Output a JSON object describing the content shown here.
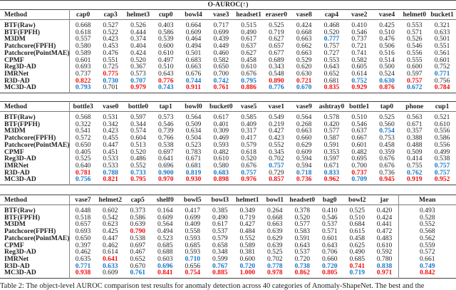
{
  "title": "O-AUROC(↑)",
  "method_header": "Method",
  "methods": [
    "BTF(Raw)",
    "BTF(FPFH)",
    "M3DM",
    "Patchcore(FPFH)",
    "Patchcore(PointMAE)",
    "CPMF",
    "Reg3D-AD",
    "IMRNet",
    "R3D-AD",
    "MC3D-AD"
  ],
  "colors": {
    "best": "#f01010",
    "second": "#1a78c8"
  },
  "blocks": [
    {
      "columns": [
        "cap0",
        "cap3",
        "helmet3",
        "cup0",
        "bowl4",
        "vase3",
        "headset1",
        "eraser0",
        "vase8",
        "cap4",
        "vase2",
        "vase4",
        "helmet0",
        "bucket1"
      ],
      "rows": [
        {
          "values": [
            "0.668",
            "0.527",
            "0.526",
            "0.403",
            "0.664",
            "0.717",
            "0.515",
            "0.525",
            "0.424",
            "0.468",
            "0.410",
            "0.425",
            "0.553",
            "0.321"
          ],
          "best": [],
          "second": []
        },
        {
          "values": [
            "0.618",
            "0.522",
            "0.444",
            "0.586",
            "0.609",
            "0.699",
            "0.490",
            "0.719",
            "0.668",
            "0.520",
            "0.546",
            "0.510",
            "0.571",
            "0.633"
          ],
          "best": [],
          "second": []
        },
        {
          "values": [
            "0.557",
            "0.423",
            "0.374",
            "0.539",
            "0.464",
            "0.439",
            "0.617",
            "0.627",
            "0.663",
            "0.777",
            "0.737",
            "0.476",
            "0.526",
            "0.501"
          ],
          "best": [],
          "second": [
            9
          ]
        },
        {
          "values": [
            "0.580",
            "0.453",
            "0.404",
            "0.600",
            "0.494",
            "0.449",
            "0.637",
            "0.657",
            "0.662",
            "0.757",
            "0.721",
            "0.506",
            "0.546",
            "0.551"
          ],
          "best": [],
          "second": []
        },
        {
          "values": [
            "0.589",
            "0.476",
            "0.424",
            "0.610",
            "0.501",
            "0.460",
            "0.627",
            "0.677",
            "0.663",
            "0.727",
            "0.741",
            "0.516",
            "0.556",
            "0.561"
          ],
          "best": [],
          "second": []
        },
        {
          "values": [
            "0.601",
            "0.551",
            "0.520",
            "0.497",
            "0.683",
            "0.582",
            "0.458",
            "0.689",
            "0.529",
            "0.553",
            "0.582",
            "0.514",
            "0.555",
            "0.601"
          ],
          "best": [],
          "second": []
        },
        {
          "values": [
            "0.693",
            "0.725",
            "0.367",
            "0.510",
            "0.663",
            "0.650",
            "0.610",
            "0.343",
            "0.620",
            "0.643",
            "0.605",
            "0.500",
            "0.600",
            "0.752"
          ],
          "best": [],
          "second": []
        },
        {
          "values": [
            "0.737",
            "0.775",
            "0.573",
            "0.643",
            "0.676",
            "0.700",
            "0.676",
            "0.548",
            "0.630",
            "0.652",
            "0.614",
            "0.524",
            "0.597",
            "0.771"
          ],
          "best": [
            1
          ],
          "second": [
            13
          ]
        },
        {
          "values": [
            "0.822",
            "0.730",
            "0.707",
            "0.776",
            "0.744",
            "0.742",
            "0.795",
            "0.890",
            "0.721",
            "0.681",
            "0.752",
            "0.630",
            "0.757",
            "0.756"
          ],
          "best": [
            0,
            3,
            7,
            8,
            12
          ],
          "second": [
            1,
            2,
            4,
            5,
            6,
            10,
            11
          ]
        },
        {
          "values": [
            "0.793",
            "0.701",
            "0.979",
            "0.743",
            "0.911",
            "0.761",
            "0.886",
            "0.776",
            "0.670",
            "0.835",
            "0.929",
            "0.876",
            "0.672",
            "0.784"
          ],
          "best": [
            2,
            4,
            5,
            6,
            9,
            10,
            11,
            13
          ],
          "second": [
            0,
            3,
            7,
            8,
            12
          ]
        }
      ]
    },
    {
      "columns": [
        "bottle3",
        "vase0",
        "bottle0",
        "tap1",
        "bowl0",
        "bucket0",
        "vase5",
        "vase1",
        "vase9",
        "ashtray0",
        "bottle1",
        "tap0",
        "phone",
        "cup1"
      ],
      "rows": [
        {
          "values": [
            "0.568",
            "0.531",
            "0.597",
            "0.573",
            "0.564",
            "0.617",
            "0.585",
            "0.549",
            "0.564",
            "0.578",
            "0.510",
            "0.525",
            "0.563",
            "0.521"
          ],
          "best": [],
          "second": []
        },
        {
          "values": [
            "0.322",
            "0.342",
            "0.344",
            "0.546",
            "0.509",
            "0.401",
            "0.409",
            "0.219",
            "0.268",
            "0.420",
            "0.546",
            "0.560",
            "0.671",
            "0.610"
          ],
          "best": [],
          "second": []
        },
        {
          "values": [
            "0.541",
            "0.423",
            "0.574",
            "0.739",
            "0.634",
            "0.309",
            "0.317",
            "0.427",
            "0.663",
            "0.577",
            "0.637",
            "0.754",
            "0.357",
            "0.556"
          ],
          "best": [],
          "second": [
            11
          ]
        },
        {
          "values": [
            "0.572",
            "0.455",
            "0.604",
            "0.766",
            "0.504",
            "0.469",
            "0.417",
            "0.423",
            "0.660",
            "0.587",
            "0.667",
            "0.753",
            "0.388",
            "0.586"
          ],
          "best": [],
          "second": []
        },
        {
          "values": [
            "0.650",
            "0.447",
            "0.513",
            "0.538",
            "0.523",
            "0.593",
            "0.579",
            "0.552",
            "0.629",
            "0.591",
            "0.601",
            "0.458",
            "0.488",
            "0.556"
          ],
          "best": [],
          "second": []
        },
        {
          "values": [
            "0.405",
            "0.451",
            "0.520",
            "0.697",
            "0.783",
            "0.482",
            "0.618",
            "0.345",
            "0.609",
            "0.353",
            "0.482",
            "0.359",
            "0.509",
            "0.499"
          ],
          "best": [],
          "second": []
        },
        {
          "values": [
            "0.525",
            "0.533",
            "0.486",
            "0.641",
            "0.671",
            "0.610",
            "0.520",
            "0.702",
            "0.594",
            "0.597",
            "0.695",
            "0.676",
            "0.414",
            "0.538"
          ],
          "best": [],
          "second": []
        },
        {
          "values": [
            "0.640",
            "0.533",
            "0.552",
            "0.696",
            "0.681",
            "0.580",
            "0.676",
            "0.757",
            "0.594",
            "0.671",
            "0.700",
            "0.676",
            "0.755",
            "0.757"
          ],
          "best": [],
          "second": [
            7,
            13
          ]
        },
        {
          "values": [
            "0.781",
            "0.788",
            "0.733",
            "0.900",
            "0.819",
            "0.683",
            "0.757",
            "0.729",
            "0.718",
            "0.833",
            "0.737",
            "0.736",
            "0.762",
            "0.757"
          ],
          "best": [
            0,
            10
          ],
          "second": [
            1,
            2,
            3,
            4,
            5,
            6,
            8,
            9,
            12,
            13
          ]
        },
        {
          "values": [
            "0.756",
            "0.821",
            "0.795",
            "0.970",
            "0.930",
            "0.898",
            "0.976",
            "0.857",
            "0.736",
            "0.962",
            "0.709",
            "0.945",
            "0.919",
            "0.952"
          ],
          "best": [
            1,
            2,
            3,
            4,
            5,
            6,
            7,
            8,
            9,
            11,
            12,
            13
          ],
          "second": [
            0,
            10
          ]
        }
      ]
    },
    {
      "columns": [
        "vase7",
        "helmet2",
        "cap5",
        "shelf0",
        "bowl5",
        "bowl3",
        "helmet1",
        "bowl1",
        "headset0",
        "bag0",
        "bowl2",
        "jar",
        "Mean"
      ],
      "rows": [
        {
          "values": [
            "0.448",
            "0.602",
            "0.373",
            "0.164",
            "0.417",
            "0.385",
            "0.349",
            "0.264",
            "0.378",
            "0.410",
            "0.525",
            "0.420",
            "0.493"
          ],
          "best": [],
          "second": []
        },
        {
          "values": [
            "0.518",
            "0.542",
            "0.586",
            "0.609",
            "0.699",
            "0.490",
            "0.719",
            "0.668",
            "0.520",
            "0.546",
            "0.510",
            "0.424",
            "0.528"
          ],
          "best": [],
          "second": []
        },
        {
          "values": [
            "0.657",
            "0.623",
            "0.639",
            "0.564",
            "0.409",
            "0.617",
            "0.427",
            "0.663",
            "0.577",
            "0.537",
            "0.684",
            "0.441",
            "0.552"
          ],
          "best": [],
          "second": []
        },
        {
          "values": [
            "0.693",
            "0.425",
            "0.790",
            "0.494",
            "0.558",
            "0.537",
            "0.484",
            "0.639",
            "0.583",
            "0.571",
            "0.615",
            "0.472",
            "0.568"
          ],
          "best": [
            2
          ],
          "second": []
        },
        {
          "values": [
            "0.650",
            "0.447",
            "0.538",
            "0.523",
            "0.593",
            "0.579",
            "0.552",
            "0.629",
            "0.591",
            "0.601",
            "0.458",
            "0.483",
            "0.562"
          ],
          "best": [],
          "second": []
        },
        {
          "values": [
            "0.397",
            "0.462",
            "0.697",
            "0.685",
            "0.685",
            "0.658",
            "0.589",
            "0.639",
            "0.643",
            "0.643",
            "0.625",
            "0.610",
            "0.559"
          ],
          "best": [],
          "second": []
        },
        {
          "values": [
            "0.462",
            "0.614",
            "0.467",
            "0.688",
            "0.593",
            "0.348",
            "0.381",
            "0.525",
            "0.537",
            "0.706",
            "0.490",
            "0.592",
            "0.572"
          ],
          "best": [],
          "second": []
        },
        {
          "values": [
            "0.635",
            "0.641",
            "0.652",
            "0.603",
            "0.710",
            "0.599",
            "0.600",
            "0.702",
            "0.720",
            "0.660",
            "0.685",
            "0.780",
            "0.661"
          ],
          "best": [
            1
          ],
          "second": [
            4
          ]
        },
        {
          "values": [
            "0.771",
            "0.633",
            "0.670",
            "0.696",
            "0.656",
            "0.767",
            "0.720",
            "0.778",
            "0.738",
            "0.720",
            "0.741",
            "0.838",
            "0.749"
          ],
          "best": [
            10
          ],
          "second": [
            0,
            1,
            3,
            5,
            6,
            7,
            8,
            9,
            11,
            12
          ]
        },
        {
          "values": [
            "0.938",
            "0.609",
            "0.761",
            "0.841",
            "0.754",
            "0.885",
            "1.000",
            "0.978",
            "0.862",
            "0.805",
            "0.719",
            "0.971",
            "0.842"
          ],
          "best": [
            0,
            3,
            4,
            5,
            6,
            7,
            8,
            9,
            11,
            12
          ],
          "second": [
            2,
            10
          ]
        }
      ]
    }
  ],
  "caption": "Table 2: The object-level AUROC comparison test results for anomaly detection across 40 categories of Anomaly-ShapeNet. The best and the"
}
